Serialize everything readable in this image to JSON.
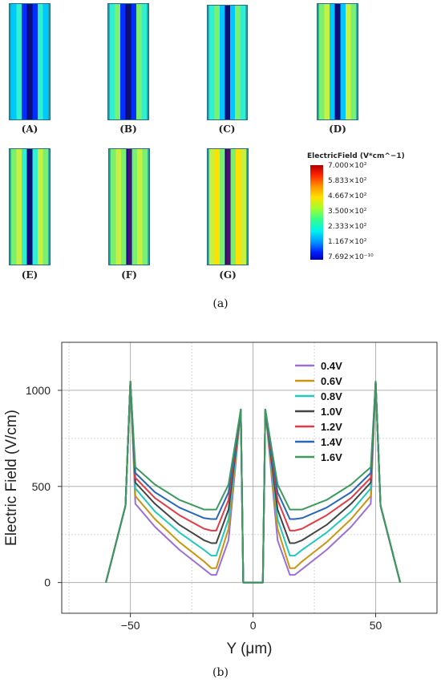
{
  "figure_a": {
    "panels": [
      {
        "label": "(A)"
      },
      {
        "label": "(B)"
      },
      {
        "label": "(C)"
      },
      {
        "label": "(D)"
      },
      {
        "label": "(E)"
      },
      {
        "label": "(F)"
      },
      {
        "label": "(G)"
      }
    ],
    "colorbar": {
      "title": "ElectricField (V*cm^−1)",
      "ticks": [
        "7.000×10²",
        "5.833×10²",
        "4.667×10²",
        "3.500×10²",
        "2.333×10²",
        "1.167×10²",
        "7.692×10⁻¹⁰"
      ]
    },
    "caption": "(a)"
  },
  "figure_b": {
    "caption": "(b)"
  },
  "chart_data": {
    "type": "line",
    "xlabel": "Y (μm)",
    "ylabel": "Electric Field (V/cm)",
    "xlim": [
      -78,
      75
    ],
    "ylim": [
      -160,
      1250
    ],
    "xticks": [
      -50,
      0,
      50
    ],
    "xtick_labels": [
      "−50",
      "0",
      "50"
    ],
    "yticks": [
      0,
      500,
      1000
    ],
    "ytick_labels": [
      "0",
      "500",
      "1000"
    ],
    "grid": true,
    "legend_position": "top-right",
    "series": [
      {
        "name": "0.4V",
        "color": "#9b6fd4",
        "x": [
          -60,
          -52,
          -50,
          -48,
          -40,
          -30,
          -20,
          -17,
          -15,
          -10,
          -5,
          -4,
          4,
          5,
          10,
          15,
          17,
          20,
          30,
          40,
          48,
          50,
          52,
          60
        ],
        "y": [
          0,
          400,
          1045,
          410,
          290,
          170,
          70,
          40,
          40,
          220,
          900,
          0,
          0,
          900,
          220,
          40,
          40,
          70,
          170,
          290,
          410,
          1045,
          400,
          0
        ]
      },
      {
        "name": "0.6V",
        "color": "#c8960f",
        "x": [
          -60,
          -52,
          -50,
          -48,
          -40,
          -30,
          -20,
          -17,
          -15,
          -10,
          -5,
          -4,
          4,
          5,
          10,
          15,
          17,
          20,
          30,
          40,
          48,
          50,
          52,
          60
        ],
        "y": [
          0,
          400,
          1045,
          450,
          330,
          210,
          110,
          75,
          75,
          280,
          900,
          0,
          0,
          900,
          280,
          75,
          75,
          110,
          210,
          330,
          450,
          1045,
          400,
          0
        ]
      },
      {
        "name": "0.8V",
        "color": "#21c8c0",
        "x": [
          -60,
          -52,
          -50,
          -48,
          -40,
          -30,
          -20,
          -17,
          -15,
          -10,
          -5,
          -4,
          4,
          5,
          10,
          15,
          17,
          20,
          30,
          40,
          48,
          50,
          52,
          60
        ],
        "y": [
          0,
          400,
          1045,
          490,
          370,
          260,
          170,
          140,
          140,
          330,
          900,
          0,
          0,
          900,
          330,
          140,
          140,
          170,
          260,
          370,
          490,
          1045,
          400,
          0
        ]
      },
      {
        "name": "1.0V",
        "color": "#444444",
        "x": [
          -60,
          -52,
          -50,
          -48,
          -40,
          -30,
          -20,
          -17,
          -15,
          -10,
          -5,
          -4,
          4,
          5,
          10,
          15,
          17,
          20,
          30,
          40,
          48,
          50,
          52,
          60
        ],
        "y": [
          0,
          400,
          1045,
          520,
          410,
          300,
          220,
          205,
          205,
          380,
          900,
          0,
          0,
          900,
          380,
          205,
          205,
          220,
          300,
          410,
          520,
          1045,
          400,
          0
        ]
      },
      {
        "name": "1.2V",
        "color": "#e03c48",
        "x": [
          -60,
          -52,
          -50,
          -48,
          -40,
          -30,
          -20,
          -17,
          -15,
          -10,
          -5,
          -4,
          4,
          5,
          10,
          15,
          17,
          20,
          30,
          40,
          48,
          50,
          52,
          60
        ],
        "y": [
          0,
          400,
          1045,
          545,
          440,
          350,
          280,
          270,
          270,
          430,
          900,
          0,
          0,
          900,
          430,
          270,
          270,
          280,
          350,
          440,
          545,
          1045,
          400,
          0
        ]
      },
      {
        "name": "1.4V",
        "color": "#2867b8",
        "x": [
          -60,
          -52,
          -50,
          -48,
          -40,
          -30,
          -20,
          -17,
          -15,
          -10,
          -5,
          -4,
          4,
          5,
          10,
          15,
          17,
          20,
          30,
          40,
          48,
          50,
          52,
          60
        ],
        "y": [
          0,
          400,
          1045,
          570,
          470,
          390,
          335,
          330,
          330,
          470,
          900,
          0,
          0,
          900,
          470,
          330,
          330,
          335,
          390,
          470,
          570,
          1045,
          400,
          0
        ]
      },
      {
        "name": "1.6V",
        "color": "#3d9a5f",
        "x": [
          -60,
          -52,
          -50,
          -48,
          -40,
          -30,
          -20,
          -17,
          -15,
          -10,
          -5,
          -4,
          4,
          5,
          10,
          15,
          17,
          20,
          30,
          40,
          48,
          50,
          52,
          60
        ],
        "y": [
          0,
          400,
          1045,
          600,
          510,
          430,
          380,
          380,
          380,
          510,
          900,
          0,
          0,
          900,
          510,
          380,
          380,
          380,
          430,
          510,
          600,
          1045,
          400,
          0
        ]
      }
    ]
  }
}
